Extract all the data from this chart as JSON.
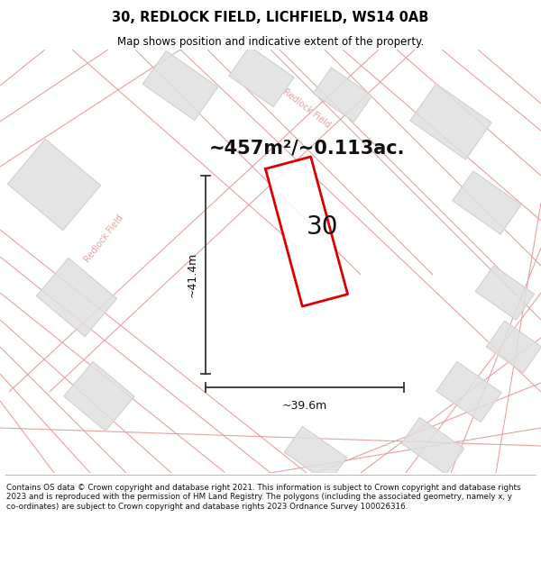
{
  "title_line1": "30, REDLOCK FIELD, LICHFIELD, WS14 0AB",
  "title_line2": "Map shows position and indicative extent of the property.",
  "area_text": "~457m²/~0.113ac.",
  "property_number": "30",
  "dim_width": "~39.6m",
  "dim_height": "~41.4m",
  "footer_text": "Contains OS data © Crown copyright and database right 2021. This information is subject to Crown copyright and database rights 2023 and is reproduced with the permission of HM Land Registry. The polygons (including the associated geometry, namely x, y co-ordinates) are subject to Crown copyright and database rights 2023 Ordnance Survey 100026316.",
  "map_bg_color": "#f8f8f8",
  "road_line_color": "#e8a0a0",
  "block_color": "#e0e0e0",
  "block_edge_color": "#cccccc",
  "property_fill": "#ffffff",
  "property_edge_color": "#dd0000",
  "title_bg": "#ffffff",
  "footer_bg": "#ffffff",
  "dim_line_color": "#333333",
  "label_color": "#e8a0a0",
  "road_lw": 0.8,
  "block_alpha": 0.85
}
